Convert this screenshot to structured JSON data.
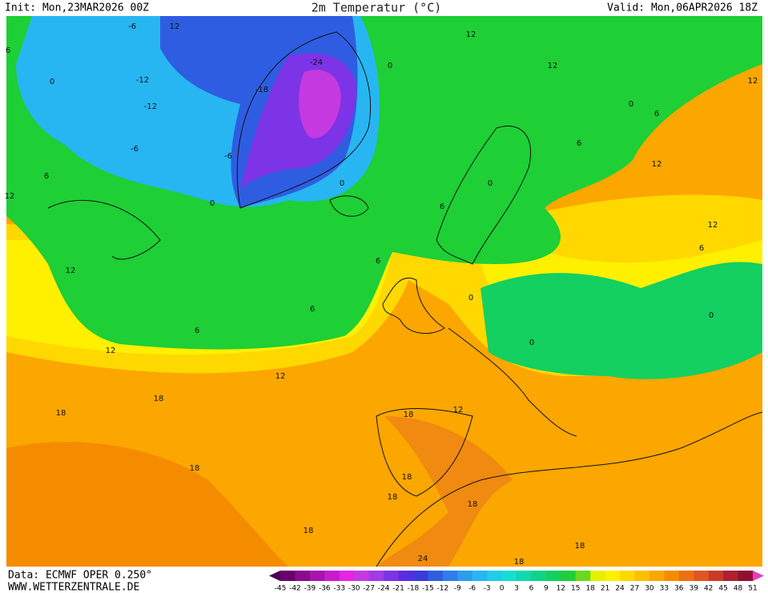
{
  "header": {
    "init": "Init: Mon,23MAR2026 00Z",
    "title": "2m Temperatur (°C)",
    "valid": "Valid: Mon,06APR2026 18Z"
  },
  "footer": {
    "source": "Data: ECMWF OPER 0.250°",
    "website": "WWW.WETTERZENTRALE.DE"
  },
  "colorbar": {
    "ticks": [
      -45,
      -42,
      -39,
      -36,
      -33,
      -30,
      -27,
      -24,
      -21,
      -18,
      -15,
      -12,
      -9,
      -6,
      -3,
      0,
      3,
      6,
      9,
      12,
      15,
      18,
      21,
      24,
      27,
      30,
      33,
      36,
      39,
      42,
      45,
      48,
      51
    ],
    "colors": [
      "#4b0055",
      "#6a006e",
      "#8b0b8f",
      "#a814ad",
      "#c81ccc",
      "#e623e6",
      "#c43ae0",
      "#a03be8",
      "#7d33e6",
      "#5a2ee0",
      "#3b3bdc",
      "#2f5de2",
      "#2d7ee8",
      "#2c9cef",
      "#27b6f2",
      "#1fcde8",
      "#16ddd0",
      "#10d9ac",
      "#0fd488",
      "#13d060",
      "#1ecf35",
      "#6ad81e",
      "#e4f000",
      "#fff000",
      "#ffd800",
      "#ffbf00",
      "#fca600",
      "#f58c00",
      "#ec7010",
      "#e05520",
      "#cc3a28",
      "#b02030",
      "#901030",
      "#e040c0"
    ]
  },
  "map": {
    "contour_labels": [
      -6,
      12,
      6,
      0,
      -12,
      -6,
      -18,
      -24,
      -6,
      0,
      0,
      6,
      6,
      0,
      12,
      12,
      12,
      6,
      0,
      6,
      12,
      0,
      12,
      6,
      12,
      12,
      6,
      6,
      0,
      12,
      12,
      18,
      18,
      18,
      18,
      18,
      18,
      18,
      12,
      18,
      18,
      24,
      18,
      0,
      -12,
      6,
      0
    ]
  }
}
